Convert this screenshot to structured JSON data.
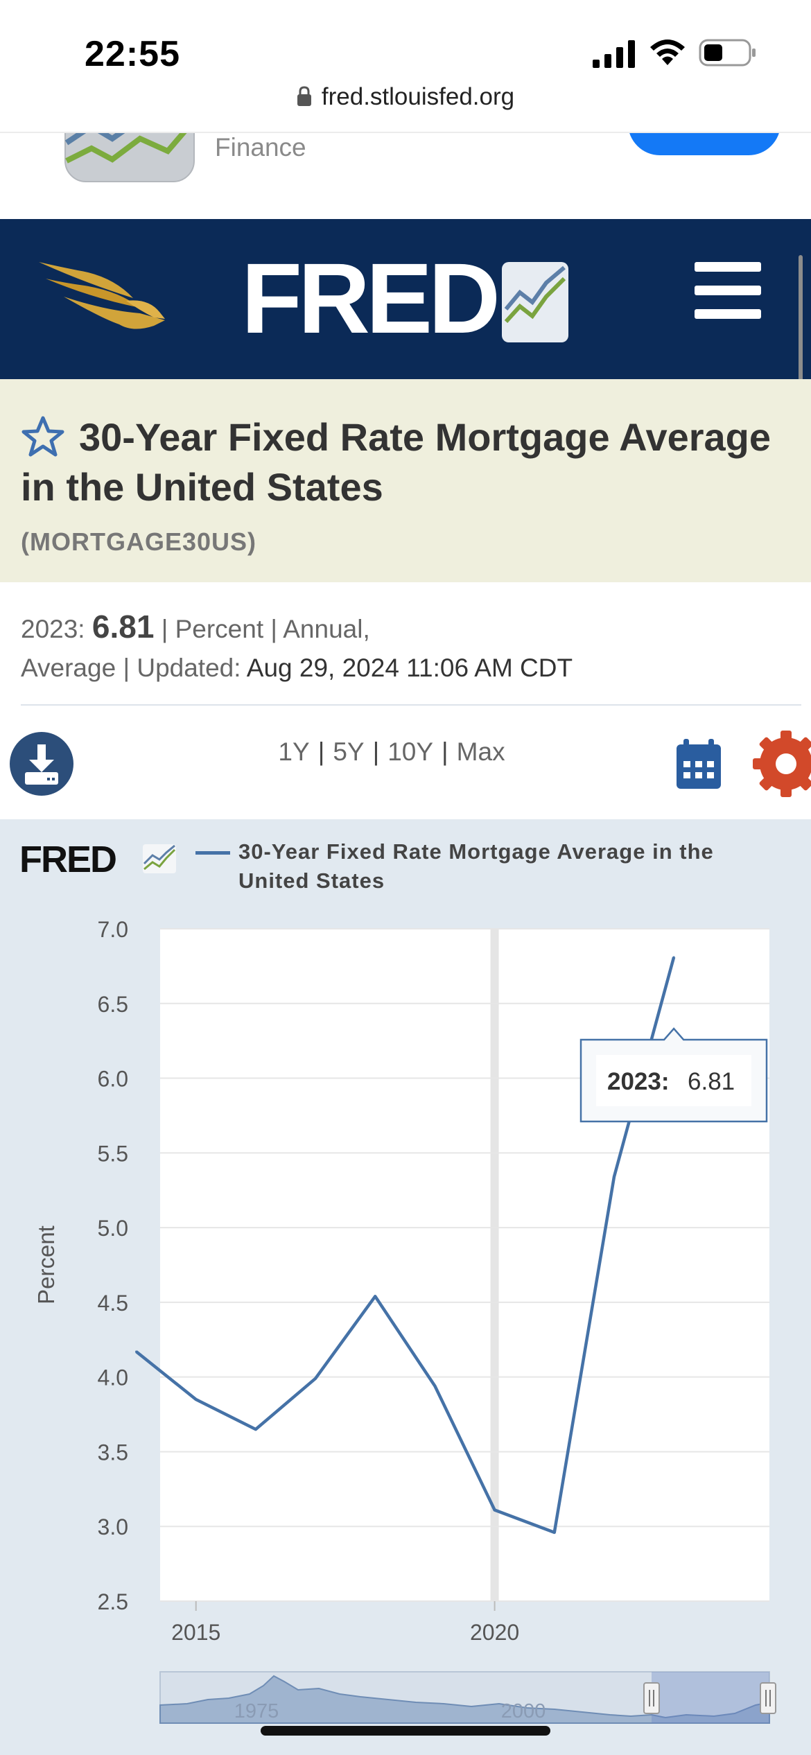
{
  "status_bar": {
    "time": "22:55"
  },
  "browser": {
    "url": "fred.stlouisfed.org"
  },
  "app_banner": {
    "label": "Finance"
  },
  "series": {
    "title": "30-Year Fixed Rate Mortgage Average in the United States",
    "id": "(MORTGAGE30US)",
    "year_label": "2023:",
    "value": "6.81",
    "units": "Percent",
    "frequency": "Annual,",
    "aggregation": "Average",
    "updated_label": "Updated:",
    "updated_value": "Aug 29, 2024 11:06 AM CDT"
  },
  "toolbar": {
    "ranges": [
      "1Y",
      "5Y",
      "10Y",
      "Max"
    ]
  },
  "colors": {
    "header_bg": "#0b2a57",
    "title_bg": "#efefdd",
    "chart_panel_bg": "#e1e9f0",
    "series_line": "#4572a7",
    "settings_accent": "#d2492a"
  },
  "chart_data": {
    "type": "line",
    "series": [
      {
        "name": "30-Year Fixed Rate Mortgage Average in the United States",
        "x": [
          2014,
          2015,
          2016,
          2017,
          2018,
          2019,
          2020,
          2021,
          2022,
          2023
        ],
        "values": [
          4.17,
          3.85,
          3.65,
          3.99,
          4.54,
          3.94,
          3.11,
          2.96,
          5.34,
          6.81
        ]
      }
    ],
    "ylabel": "Percent",
    "ylim": [
      2.5,
      7.0
    ],
    "y_ticks": [
      "7.0",
      "6.5",
      "6.0",
      "5.5",
      "5.0",
      "4.5",
      "4.0",
      "3.5",
      "3.0",
      "2.5"
    ],
    "x_ticks": [
      "2015",
      "2020"
    ],
    "xlim": [
      2014.4,
      2024.6
    ],
    "recession_band_year": 2020,
    "tooltip": {
      "label": "2023:",
      "value": "6.81"
    },
    "navigator_ticks": [
      "1975",
      "2000"
    ],
    "grid": true
  }
}
